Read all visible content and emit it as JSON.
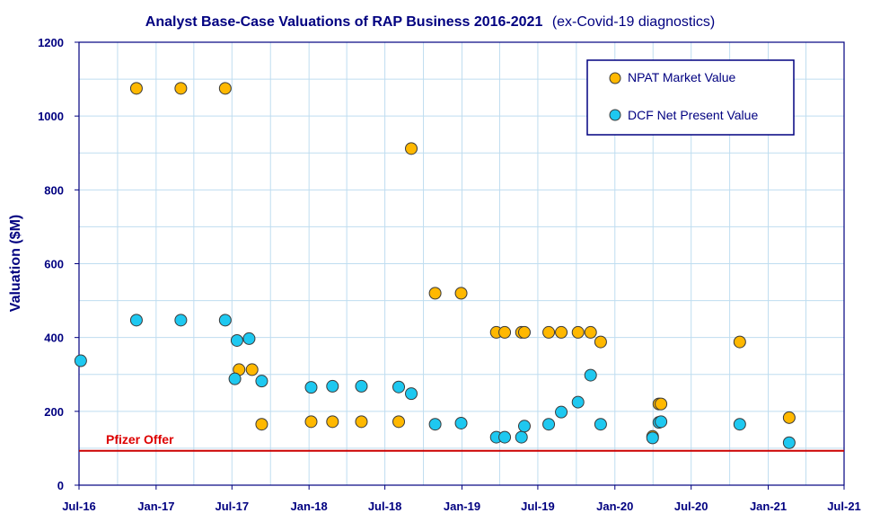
{
  "chart_data": {
    "type": "scatter",
    "title": "Analyst Base-Case Valuations of RAP Business 2016-2021",
    "subtitle": "(ex-Covid-19 diagnostics)",
    "xlabel": "",
    "ylabel": "Valuation ($M)",
    "x_scale": "date",
    "xlim": [
      "2016-07-01",
      "2021-07-01"
    ],
    "ylim": [
      0,
      1200
    ],
    "x_tick_labels": [
      "Jul-16",
      "Jan-17",
      "Jul-17",
      "Jan-18",
      "Jul-18",
      "Jan-19",
      "Jul-19",
      "Jan-20",
      "Jul-20",
      "Jan-21",
      "Jul-21"
    ],
    "y_ticks": [
      0,
      200,
      400,
      600,
      800,
      1000,
      1200
    ],
    "grid": true,
    "legend_position": "top-right",
    "series": [
      {
        "name": "NPAT Market Value",
        "color": "#FFB800",
        "points": [
          {
            "x": "2016-11-15",
            "y": 1075
          },
          {
            "x": "2017-03-01",
            "y": 1075
          },
          {
            "x": "2017-06-15",
            "y": 1075
          },
          {
            "x": "2017-07-18",
            "y": 313
          },
          {
            "x": "2017-08-18",
            "y": 313
          },
          {
            "x": "2017-09-10",
            "y": 165
          },
          {
            "x": "2018-01-06",
            "y": 172
          },
          {
            "x": "2018-02-26",
            "y": 172
          },
          {
            "x": "2018-05-06",
            "y": 172
          },
          {
            "x": "2018-08-03",
            "y": 172
          },
          {
            "x": "2018-09-02",
            "y": 912
          },
          {
            "x": "2018-10-29",
            "y": 520
          },
          {
            "x": "2018-12-30",
            "y": 520
          },
          {
            "x": "2019-03-24",
            "y": 414
          },
          {
            "x": "2019-04-13",
            "y": 414
          },
          {
            "x": "2019-05-23",
            "y": 414
          },
          {
            "x": "2019-05-30",
            "y": 414
          },
          {
            "x": "2019-07-27",
            "y": 414
          },
          {
            "x": "2019-08-26",
            "y": 414
          },
          {
            "x": "2019-10-05",
            "y": 414
          },
          {
            "x": "2019-11-04",
            "y": 414
          },
          {
            "x": "2019-11-28",
            "y": 388
          },
          {
            "x": "2020-03-31",
            "y": 132
          },
          {
            "x": "2020-04-15",
            "y": 220
          },
          {
            "x": "2020-04-20",
            "y": 220
          },
          {
            "x": "2020-10-25",
            "y": 388
          },
          {
            "x": "2021-02-20",
            "y": 183
          }
        ]
      },
      {
        "name": "DCF Net Present Value",
        "color": "#1EC8F0",
        "points": [
          {
            "x": "2016-07-05",
            "y": 337
          },
          {
            "x": "2016-11-15",
            "y": 447
          },
          {
            "x": "2017-03-01",
            "y": 447
          },
          {
            "x": "2017-06-15",
            "y": 447
          },
          {
            "x": "2017-07-08",
            "y": 288
          },
          {
            "x": "2017-07-13",
            "y": 392
          },
          {
            "x": "2017-08-11",
            "y": 397
          },
          {
            "x": "2017-09-10",
            "y": 282
          },
          {
            "x": "2018-01-06",
            "y": 265
          },
          {
            "x": "2018-02-26",
            "y": 268
          },
          {
            "x": "2018-05-06",
            "y": 268
          },
          {
            "x": "2018-08-03",
            "y": 266
          },
          {
            "x": "2018-09-02",
            "y": 248
          },
          {
            "x": "2018-10-29",
            "y": 165
          },
          {
            "x": "2018-12-30",
            "y": 168
          },
          {
            "x": "2019-03-24",
            "y": 130
          },
          {
            "x": "2019-04-13",
            "y": 130
          },
          {
            "x": "2019-05-23",
            "y": 130
          },
          {
            "x": "2019-05-30",
            "y": 160
          },
          {
            "x": "2019-07-27",
            "y": 165
          },
          {
            "x": "2019-08-26",
            "y": 198
          },
          {
            "x": "2019-10-05",
            "y": 225
          },
          {
            "x": "2019-11-04",
            "y": 298
          },
          {
            "x": "2019-11-28",
            "y": 165
          },
          {
            "x": "2020-03-31",
            "y": 128
          },
          {
            "x": "2020-04-15",
            "y": 170
          },
          {
            "x": "2020-04-20",
            "y": 172
          },
          {
            "x": "2020-10-25",
            "y": 165
          },
          {
            "x": "2021-02-20",
            "y": 115
          }
        ]
      }
    ],
    "reference_lines": [
      {
        "label": "Pfizer Offer",
        "y": 93,
        "color": "#CC0000"
      }
    ]
  }
}
